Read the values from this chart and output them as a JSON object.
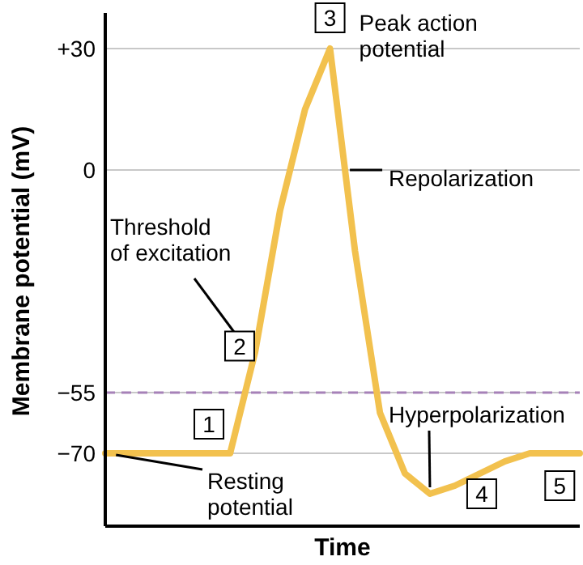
{
  "chart_data": {
    "type": "line",
    "xlabel": "Time",
    "ylabel": "Membrane potential (mV)",
    "categories": [
      null,
      null,
      null,
      null,
      null,
      null,
      null,
      null,
      null,
      null,
      null,
      null,
      null,
      null,
      null,
      null,
      null,
      null,
      null,
      null
    ],
    "series": [
      {
        "color": "#f2c14e",
        "values": [
          -70,
          -70,
          -70,
          -70,
          -70,
          -70,
          -45,
          -10,
          15,
          30,
          -20,
          -60,
          -75,
          -80,
          -78,
          -75,
          -72,
          -70,
          -70,
          -70
        ]
      }
    ],
    "ylim": [
      -88,
      38
    ],
    "yticks": [
      {
        "value": 30,
        "label": "+30"
      },
      0,
      {
        "value": -55,
        "label": "−55"
      },
      {
        "value": -70,
        "label": "−70"
      }
    ],
    "grid": "y",
    "marker": "none",
    "line_style": "solid",
    "tick_labels": "y",
    "ref_lines": [
      {
        "axis": "y",
        "value": -55,
        "color": "#a681b8",
        "line_style": "dashed"
      }
    ],
    "annotations": [
      "Peak action potential",
      "Repolarization",
      "Threshold of excitation",
      "Resting potential",
      "Hyperpolarization",
      "1",
      "2",
      "3",
      "4",
      "5"
    ]
  }
}
